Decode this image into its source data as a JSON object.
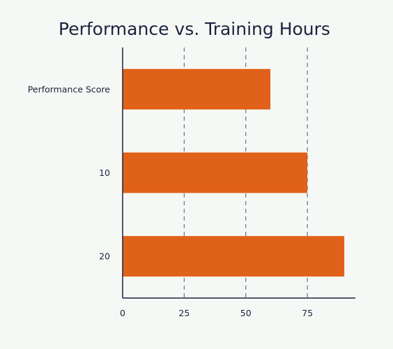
{
  "chart_data": {
    "type": "bar",
    "orientation": "horizontal",
    "title": "Performance vs. Training Hours",
    "xlabel": "",
    "ylabel": "",
    "categories": [
      "Performance Score",
      "10",
      "20"
    ],
    "series": [
      {
        "values": [
          60,
          75,
          90
        ]
      }
    ],
    "xlim": [
      0,
      94.5
    ],
    "xticks": [
      0,
      25,
      50,
      75
    ],
    "grid": "vertical dashed",
    "legend": "none",
    "colors": {
      "bar": "#e06119",
      "axis": "#1b2340",
      "grid": "#6b7280",
      "text": "#1b2340",
      "background": "#f6f8f5"
    }
  }
}
